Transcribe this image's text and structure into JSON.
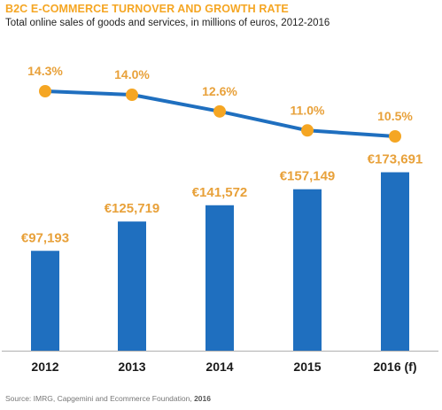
{
  "title": "B2C E-COMMERCE TURNOVER AND GROWTH RATE",
  "subtitle": "Total online sales of goods and services, in millions of euros, 2012-2016",
  "source": {
    "text": "Source: IMRG, Capgemini and Ecommerce Foundation, ",
    "year": "2016"
  },
  "colors": {
    "title": "#f5a623",
    "bar": "#1f6fbf",
    "line": "#1f6fbf",
    "marker": "#f5a623",
    "bar_label": "#e8a13a",
    "rate_label": "#e8a13a",
    "axis": "#b0b0b0",
    "category": "#1a1a1a"
  },
  "chart_data": [
    {
      "type": "bar",
      "categories": [
        "2012",
        "2013",
        "2014",
        "2015",
        "2016 (f)"
      ],
      "values": [
        97193,
        125719,
        141572,
        157149,
        173691
      ],
      "value_labels": [
        "€97,193",
        "€125,719",
        "€141,572",
        "€157,149",
        "€173,691"
      ],
      "ylim": [
        0,
        175000
      ]
    },
    {
      "type": "line",
      "categories": [
        "2012",
        "2013",
        "2014",
        "2015",
        "2016 (f)"
      ],
      "values": [
        14.3,
        14.0,
        12.6,
        11.0,
        10.5
      ],
      "value_labels": [
        "14.3%",
        "14.0%",
        "12.6%",
        "11.0%",
        "10.5%"
      ],
      "ylim": [
        10.5,
        14.3
      ]
    }
  ]
}
